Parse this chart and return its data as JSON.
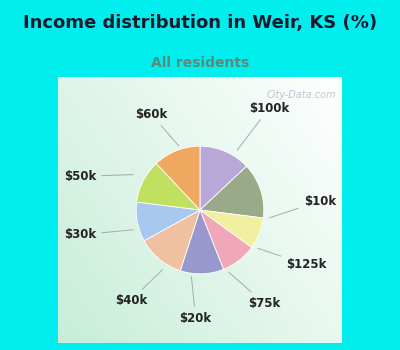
{
  "title": "Income distribution in Weir, KS (%)",
  "subtitle": "All residents",
  "title_color": "#1a1a2e",
  "subtitle_color": "#5a8a7a",
  "background_color": "#00EEEE",
  "watermark": "City-Data.com",
  "labels": [
    "$100k",
    "$10k",
    "$125k",
    "$75k",
    "$20k",
    "$40k",
    "$30k",
    "$50k",
    "$60k"
  ],
  "values": [
    13,
    14,
    8,
    9,
    11,
    12,
    10,
    11,
    12
  ],
  "colors": [
    "#b8a8d8",
    "#9aaa88",
    "#f0f0a0",
    "#f0a8b8",
    "#9898cc",
    "#f0c0a0",
    "#a8c8f0",
    "#c0e060",
    "#f0a860"
  ],
  "title_fontsize": 13,
  "subtitle_fontsize": 10,
  "label_fontsize": 8.5
}
